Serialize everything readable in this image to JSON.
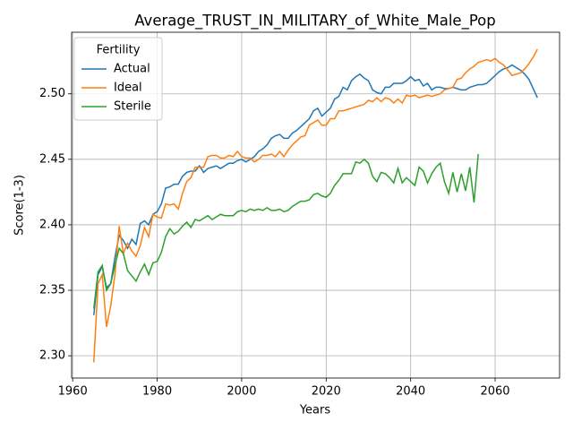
{
  "chart_data": {
    "type": "line",
    "title": "Average_TRUST_IN_MILITARY_of_White_Male_Pop",
    "xlabel": "Years",
    "ylabel": "Score(1-3)",
    "legend_title": "Fertility",
    "legend": "upper left",
    "grid": true,
    "xlim": [
      1959.75,
      2075.25
    ],
    "xticks": [
      1960,
      1980,
      2000,
      2020,
      2040,
      2060
    ],
    "ylim": [
      2.283,
      2.547
    ],
    "yticks": [
      {
        "value": 2.3,
        "label": "2.30"
      },
      {
        "value": 2.35,
        "label": "2.35"
      },
      {
        "value": 2.4,
        "label": "2.40"
      },
      {
        "value": 2.45,
        "label": "2.45"
      },
      {
        "value": 2.5,
        "label": "2.50"
      }
    ],
    "x": [
      1965,
      1966,
      1967,
      1968,
      1969,
      1970,
      1971,
      1972,
      1973,
      1974,
      1975,
      1976,
      1977,
      1978,
      1979,
      1980,
      1981,
      1982,
      1983,
      1984,
      1985,
      1986,
      1987,
      1988,
      1989,
      1990,
      1991,
      1992,
      1993,
      1994,
      1995,
      1996,
      1997,
      1998,
      1999,
      2000,
      2001,
      2002,
      2003,
      2004,
      2005,
      2006,
      2007,
      2008,
      2009,
      2010,
      2011,
      2012,
      2013,
      2014,
      2015,
      2016,
      2017,
      2018,
      2019,
      2020,
      2021,
      2022,
      2023,
      2024,
      2025,
      2026,
      2027,
      2028,
      2029,
      2030,
      2031,
      2032,
      2033,
      2034,
      2035,
      2036,
      2037,
      2038,
      2039,
      2040,
      2041,
      2042,
      2043,
      2044,
      2045,
      2046,
      2047,
      2048,
      2049,
      2050,
      2051,
      2052,
      2053,
      2054,
      2055,
      2056,
      2057,
      2058,
      2059,
      2060,
      2061,
      2062,
      2063,
      2064,
      2065,
      2066,
      2067,
      2068,
      2069,
      2070
    ],
    "series": [
      {
        "name": "Actual",
        "color": "#1f77b4",
        "values": [
          2.331,
          2.362,
          2.368,
          2.352,
          2.355,
          2.375,
          2.392,
          2.388,
          2.382,
          2.389,
          2.385,
          2.401,
          2.403,
          2.4,
          2.408,
          2.41,
          2.416,
          2.428,
          2.429,
          2.431,
          2.431,
          2.437,
          2.44,
          2.441,
          2.441,
          2.445,
          2.44,
          2.443,
          2.444,
          2.445,
          2.443,
          2.445,
          2.447,
          2.447,
          2.449,
          2.45,
          2.448,
          2.45,
          2.452,
          2.456,
          2.458,
          2.461,
          2.466,
          2.468,
          2.469,
          2.466,
          2.466,
          2.47,
          2.472,
          2.475,
          2.478,
          2.481,
          2.487,
          2.489,
          2.483,
          2.486,
          2.489,
          2.496,
          2.498,
          2.505,
          2.503,
          2.51,
          2.513,
          2.515,
          2.512,
          2.51,
          2.503,
          2.501,
          2.5,
          2.505,
          2.505,
          2.508,
          2.508,
          2.508,
          2.51,
          2.513,
          2.51,
          2.511,
          2.506,
          2.508,
          2.503,
          2.505,
          2.505,
          2.504,
          2.504,
          2.505,
          2.504,
          2.503,
          2.503,
          2.505,
          2.506,
          2.507,
          2.507,
          2.508,
          2.511,
          2.514,
          2.517,
          2.519,
          2.52,
          2.522,
          2.52,
          2.518,
          2.515,
          2.511,
          2.504,
          2.497
        ]
      },
      {
        "name": "Ideal",
        "color": "#ff7f0e",
        "values": [
          2.295,
          2.355,
          2.362,
          2.322,
          2.338,
          2.362,
          2.399,
          2.378,
          2.386,
          2.38,
          2.376,
          2.384,
          2.398,
          2.391,
          2.408,
          2.406,
          2.405,
          2.416,
          2.415,
          2.416,
          2.412,
          2.424,
          2.433,
          2.436,
          2.444,
          2.444,
          2.444,
          2.452,
          2.453,
          2.453,
          2.451,
          2.451,
          2.453,
          2.452,
          2.456,
          2.452,
          2.451,
          2.451,
          2.448,
          2.45,
          2.453,
          2.453,
          2.454,
          2.452,
          2.456,
          2.452,
          2.457,
          2.461,
          2.464,
          2.467,
          2.468,
          2.476,
          2.478,
          2.48,
          2.476,
          2.476,
          2.481,
          2.481,
          2.487,
          2.487,
          2.488,
          2.489,
          2.49,
          2.491,
          2.492,
          2.495,
          2.494,
          2.497,
          2.494,
          2.497,
          2.496,
          2.493,
          2.496,
          2.493,
          2.499,
          2.498,
          2.499,
          2.497,
          2.498,
          2.499,
          2.498,
          2.499,
          2.5,
          2.503,
          2.504,
          2.505,
          2.511,
          2.512,
          2.516,
          2.519,
          2.521,
          2.524,
          2.525,
          2.526,
          2.525,
          2.527,
          2.524,
          2.522,
          2.518,
          2.514,
          2.515,
          2.516,
          2.519,
          2.523,
          2.528,
          2.534
        ]
      },
      {
        "name": "Sterile",
        "color": "#2ca02c",
        "values": [
          2.336,
          2.364,
          2.369,
          2.35,
          2.355,
          2.369,
          2.382,
          2.378,
          2.365,
          2.361,
          2.357,
          2.364,
          2.37,
          2.362,
          2.371,
          2.372,
          2.379,
          2.391,
          2.397,
          2.393,
          2.395,
          2.399,
          2.402,
          2.398,
          2.404,
          2.403,
          2.405,
          2.407,
          2.404,
          2.406,
          2.408,
          2.407,
          2.407,
          2.407,
          2.41,
          2.411,
          2.41,
          2.412,
          2.411,
          2.412,
          2.411,
          2.413,
          2.411,
          2.411,
          2.412,
          2.41,
          2.411,
          2.414,
          2.416,
          2.418,
          2.418,
          2.419,
          2.423,
          2.424,
          2.422,
          2.421,
          2.424,
          2.43,
          2.434,
          2.439,
          2.439,
          2.439,
          2.448,
          2.447,
          2.45,
          2.447,
          2.437,
          2.433,
          2.44,
          2.439,
          2.436,
          2.432,
          2.443,
          2.432,
          2.436,
          2.433,
          2.43,
          2.444,
          2.441,
          2.432,
          2.439,
          2.444,
          2.447,
          2.433,
          2.424,
          2.44,
          2.425,
          2.439,
          2.426,
          2.444,
          2.417,
          2.454,
          null,
          null,
          null,
          null,
          null,
          null,
          null,
          null,
          null,
          null,
          null,
          null,
          null,
          null
        ]
      }
    ]
  }
}
